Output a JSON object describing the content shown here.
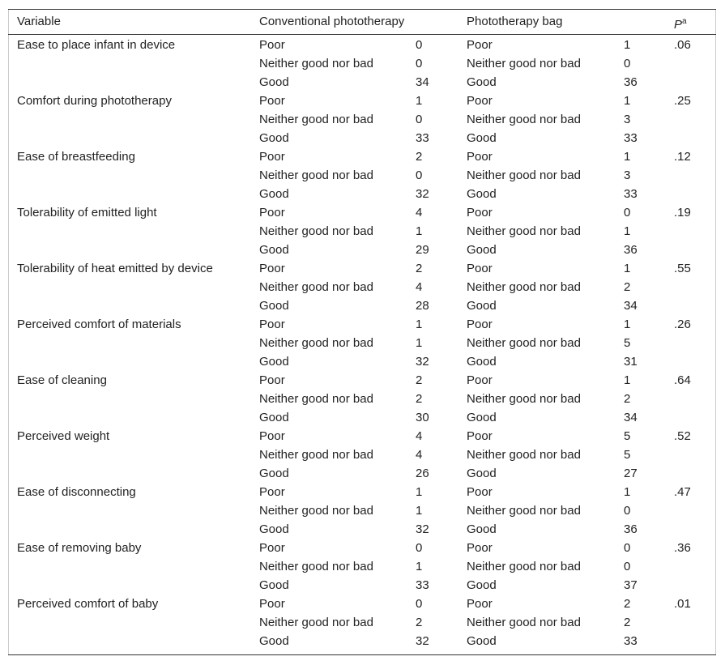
{
  "header": {
    "variable": "Variable",
    "conventional": "Conventional phototherapy",
    "bag": "Phototherapy bag",
    "p": "P",
    "p_note": "a"
  },
  "groups": [
    {
      "variable": "Ease to place infant in device",
      "p": ".06",
      "levels": [
        [
          "Poor",
          0,
          "Poor",
          1
        ],
        [
          "Neither good nor bad",
          0,
          "Neither good nor bad",
          0
        ],
        [
          "Good",
          34,
          "Good",
          36
        ]
      ]
    },
    {
      "variable": "Comfort during phototherapy",
      "p": ".25",
      "levels": [
        [
          "Poor",
          1,
          "Poor",
          1
        ],
        [
          "Neither good nor bad",
          0,
          "Neither good nor bad",
          3
        ],
        [
          "Good",
          33,
          "Good",
          33
        ]
      ]
    },
    {
      "variable": "Ease of breastfeeding",
      "p": ".12",
      "levels": [
        [
          "Poor",
          2,
          "Poor",
          1
        ],
        [
          "Neither good nor bad",
          0,
          "Neither good nor bad",
          3
        ],
        [
          "Good",
          32,
          "Good",
          33
        ]
      ]
    },
    {
      "variable": "Tolerability of emitted light",
      "p": ".19",
      "levels": [
        [
          "Poor",
          4,
          "Poor",
          0
        ],
        [
          "Neither good nor bad",
          1,
          "Neither good nor bad",
          1
        ],
        [
          "Good",
          29,
          "Good",
          36
        ]
      ]
    },
    {
      "variable": "Tolerability of heat emitted by device",
      "p": ".55",
      "levels": [
        [
          "Poor",
          2,
          "Poor",
          1
        ],
        [
          "Neither good nor bad",
          4,
          "Neither good nor bad",
          2
        ],
        [
          "Good",
          28,
          "Good",
          34
        ]
      ]
    },
    {
      "variable": "Perceived comfort of materials",
      "p": ".26",
      "levels": [
        [
          "Poor",
          1,
          "Poor",
          1
        ],
        [
          "Neither good nor bad",
          1,
          "Neither good nor bad",
          5
        ],
        [
          "Good",
          32,
          "Good",
          31
        ]
      ]
    },
    {
      "variable": "Ease of cleaning",
      "p": ".64",
      "levels": [
        [
          "Poor",
          2,
          "Poor",
          1
        ],
        [
          "Neither good nor bad",
          2,
          "Neither good nor bad",
          2
        ],
        [
          "Good",
          30,
          "Good",
          34
        ]
      ]
    },
    {
      "variable": "Perceived weight",
      "p": ".52",
      "levels": [
        [
          "Poor",
          4,
          "Poor",
          5
        ],
        [
          "Neither good nor bad",
          4,
          "Neither good nor bad",
          5
        ],
        [
          "Good",
          26,
          "Good",
          27
        ]
      ]
    },
    {
      "variable": "Ease of disconnecting",
      "p": ".47",
      "levels": [
        [
          "Poor",
          1,
          "Poor",
          1
        ],
        [
          "Neither good nor bad",
          1,
          "Neither good nor bad",
          0
        ],
        [
          "Good",
          32,
          "Good",
          36
        ]
      ]
    },
    {
      "variable": "Ease of removing baby",
      "p": ".36",
      "levels": [
        [
          "Poor",
          0,
          "Poor",
          0
        ],
        [
          "Neither good nor bad",
          1,
          "Neither good nor bad",
          0
        ],
        [
          "Good",
          33,
          "Good",
          37
        ]
      ]
    },
    {
      "variable": "Perceived comfort of baby",
      "p": ".01",
      "levels": [
        [
          "Poor",
          0,
          "Poor",
          2
        ],
        [
          "Neither good nor bad",
          2,
          "Neither good nor bad",
          2
        ],
        [
          "Good",
          32,
          "Good",
          33
        ]
      ]
    }
  ]
}
